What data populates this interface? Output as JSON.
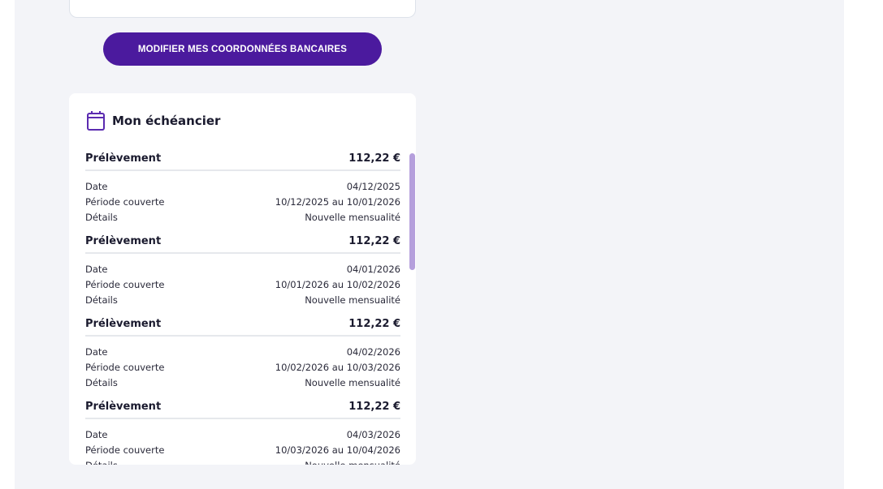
{
  "actions": {
    "modify_bank_label": "MODIFIER MES COORDONNÉES BANCAIRES"
  },
  "schedule": {
    "title": "Mon échéancier",
    "icon": "calendar-icon",
    "accent": "#4b1a9e",
    "items": [
      {
        "type": "Prélèvement",
        "amount": "112,22 €",
        "date_label": "Date",
        "date": "04/12/2025",
        "period_label": "Période couverte",
        "period": "10/12/2025 au 10/01/2026",
        "details_label": "Détails",
        "details": "Nouvelle mensualité"
      },
      {
        "type": "Prélèvement",
        "amount": "112,22 €",
        "date_label": "Date",
        "date": "04/01/2026",
        "period_label": "Période couverte",
        "period": "10/01/2026 au 10/02/2026",
        "details_label": "Détails",
        "details": "Nouvelle mensualité"
      },
      {
        "type": "Prélèvement",
        "amount": "112,22 €",
        "date_label": "Date",
        "date": "04/02/2026",
        "period_label": "Période couverte",
        "period": "10/02/2026 au 10/03/2026",
        "details_label": "Détails",
        "details": "Nouvelle mensualité"
      },
      {
        "type": "Prélèvement",
        "amount": "112,22 €",
        "date_label": "Date",
        "date": "04/03/2026",
        "period_label": "Période couverte",
        "period": "10/03/2026 au 10/04/2026",
        "details_label": "Détails",
        "details": "Nouvelle mensualité"
      }
    ]
  }
}
